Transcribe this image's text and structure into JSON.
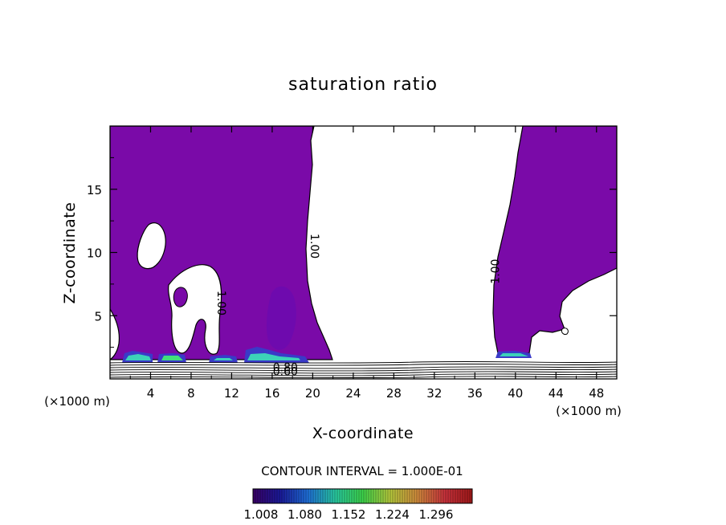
{
  "chart_data": {
    "type": "heatmap",
    "title": "saturation ratio",
    "xlabel": "X-coordinate",
    "ylabel": "Z-coordinate",
    "x_unit": "(×1000 m)",
    "z_unit": "(×1000 m)",
    "xlim": [
      0,
      50
    ],
    "ylim": [
      0,
      20
    ],
    "x_ticks": [
      4,
      8,
      12,
      16,
      20,
      24,
      28,
      32,
      36,
      40,
      44,
      48
    ],
    "y_ticks": [
      5,
      10,
      15
    ],
    "contour_labels": [
      {
        "text": "1.00",
        "x": 19.8,
        "z": 10.5,
        "rotate": 90
      },
      {
        "text": "1.00",
        "x": 38.4,
        "z": 8.5,
        "rotate": -90
      },
      {
        "text": "1.00",
        "x": 10.6,
        "z": 6.0,
        "rotate": 90
      },
      {
        "text": "0.80",
        "x": 17.3,
        "z": 0.6,
        "rotate": 0
      },
      {
        "text": "0.60",
        "x": 17.3,
        "z": 0.3,
        "rotate": 0
      }
    ],
    "fill_color_base": "#7a0aa8",
    "contour_interval_label": "CONTOUR INTERVAL = 1.000E-01",
    "colorbar": {
      "labels": [
        "1.008",
        "1.080",
        "1.152",
        "1.224",
        "1.296"
      ],
      "colors": [
        "#3a0066",
        "#1a1a9a",
        "#1e6fd8",
        "#28c8a0",
        "#3cd24a",
        "#b4c83c",
        "#d08a3c",
        "#c8323c",
        "#a01818"
      ]
    }
  }
}
